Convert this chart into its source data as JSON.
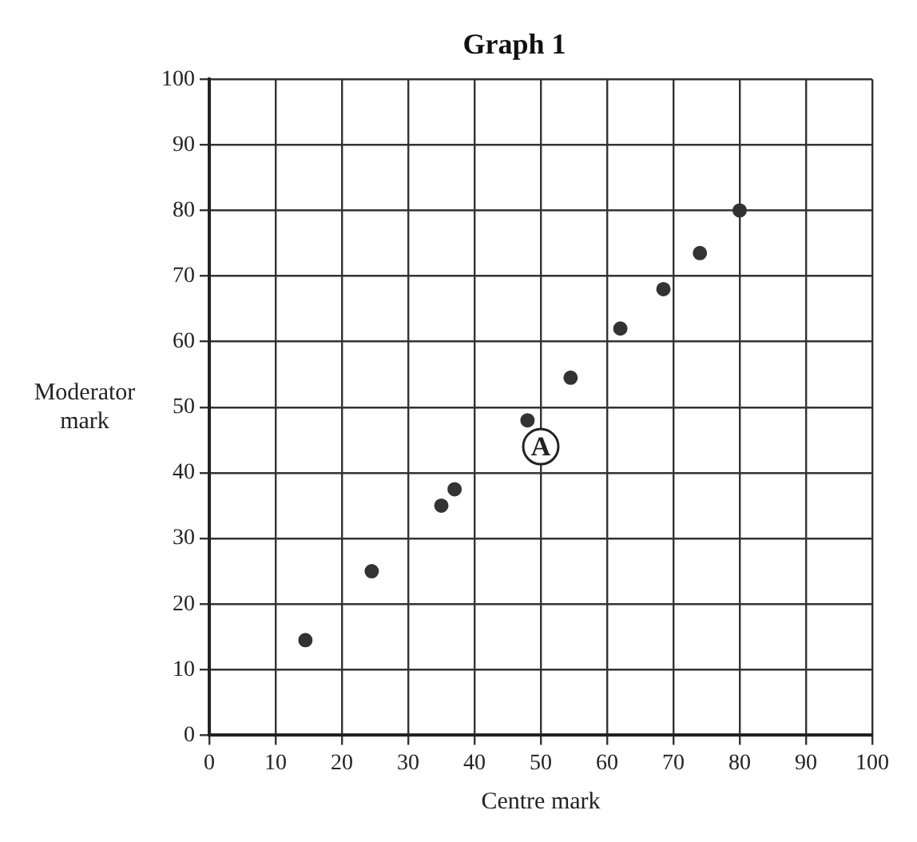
{
  "chart_data": {
    "type": "scatter",
    "title": "Graph 1",
    "xlabel": "Centre mark",
    "ylabel": "Moderator mark",
    "x": [
      14.5,
      24.5,
      35,
      37,
      48,
      54.5,
      62,
      68.5,
      74,
      80
    ],
    "values": [
      14.5,
      25,
      35,
      37.5,
      48,
      54.5,
      62,
      68,
      73.5,
      80
    ],
    "color": "#333333",
    "marker": "circle",
    "xlim": [
      0,
      100
    ],
    "xticks": [
      0,
      10,
      20,
      30,
      40,
      50,
      60,
      70,
      80,
      90,
      100
    ],
    "ylim": [
      0,
      100
    ],
    "yticks": [
      0,
      10,
      20,
      30,
      40,
      50,
      60,
      70,
      80,
      90,
      100
    ],
    "grid": true,
    "legend": false,
    "annotations": [
      {
        "text": "A",
        "x": 50,
        "y": 44
      }
    ]
  }
}
